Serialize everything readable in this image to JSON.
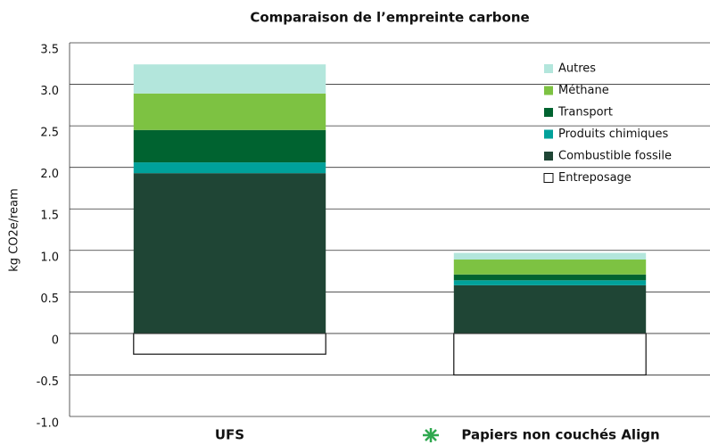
{
  "chart_data": {
    "type": "stacked_bar",
    "title": "Comparaison de l’empreinte carbone",
    "y_label": "kg CO2e/ream",
    "categories": [
      "UFS",
      "Papiers non couchés Align"
    ],
    "series": [
      {
        "name": "Entreposage",
        "color": "#ffffff",
        "values": [
          -0.25,
          -0.5
        ]
      },
      {
        "name": "Combustible fossile",
        "color": "#1f4535",
        "values": [
          1.93,
          0.58
        ]
      },
      {
        "name": "Produits chimiques",
        "color": "#00a19a",
        "values": [
          0.13,
          0.06
        ]
      },
      {
        "name": "Transport",
        "color": "#006330",
        "values": [
          0.39,
          0.07
        ]
      },
      {
        "name": "Méthane",
        "color": "#7dc242",
        "values": [
          0.44,
          0.18
        ]
      },
      {
        "name": "Autres",
        "color": "#b3e6dc",
        "values": [
          0.35,
          0.08
        ]
      }
    ],
    "ylim": [
      -1.0,
      3.5
    ],
    "yticks": [
      {
        "value": -1.0,
        "label": "-1.0"
      },
      -0.5,
      0,
      0.5,
      {
        "value": 1.0,
        "label": "1.0"
      },
      1.5,
      {
        "value": 2.0,
        "label": "2.0"
      },
      2.5,
      {
        "value": 3.0,
        "label": "3.0"
      },
      3.5
    ],
    "grid": true,
    "legend": "top-right"
  }
}
